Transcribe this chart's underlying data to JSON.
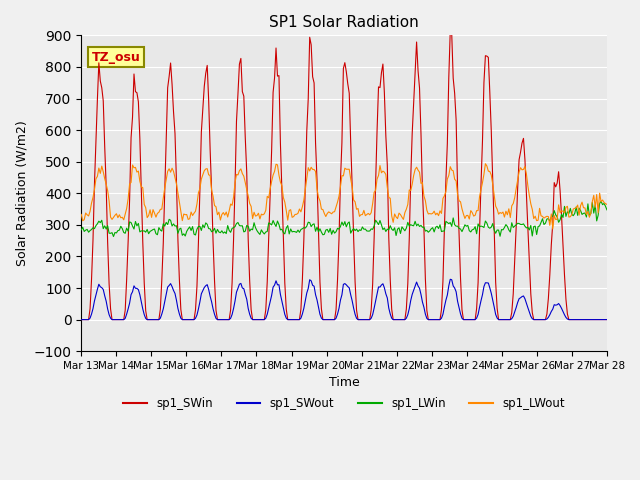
{
  "title": "SP1 Solar Radiation",
  "xlabel": "Time",
  "ylabel": "Solar Radiation (W/m2)",
  "ylim": [
    -100,
    900
  ],
  "yticks": [
    -100,
    0,
    100,
    200,
    300,
    400,
    500,
    600,
    700,
    800,
    900
  ],
  "xtick_labels": [
    "Mar 13",
    "Mar 14",
    "Mar 15",
    "Mar 16",
    "Mar 17",
    "Mar 18",
    "Mar 19",
    "Mar 20",
    "Mar 21",
    "Mar 22",
    "Mar 23",
    "Mar 24",
    "Mar 25",
    "Mar 26",
    "Mar 27",
    "Mar 28"
  ],
  "colors": {
    "SWin": "#cc0000",
    "SWout": "#0000cc",
    "LWin": "#00aa00",
    "LWout": "#ff8800"
  },
  "legend_labels": [
    "sp1_SWin",
    "sp1_SWout",
    "sp1_LWin",
    "sp1_LWout"
  ],
  "annotation_text": "TZ_osu",
  "background_color": "#e8e8e8",
  "grid_color": "#ffffff",
  "n_days": 15,
  "noise_level": 0.05,
  "sw_peaks": [
    835,
    800,
    820,
    800,
    830,
    840,
    850,
    820,
    820,
    850,
    860,
    860,
    575,
    460,
    0
  ],
  "sw_peaks_out": [
    115,
    110,
    115,
    110,
    115,
    120,
    120,
    115,
    115,
    115,
    120,
    120,
    75,
    50,
    0
  ]
}
